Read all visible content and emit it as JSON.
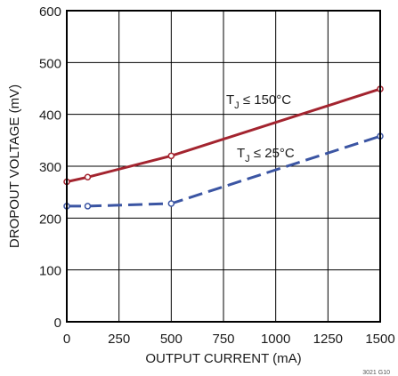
{
  "chart_data": {
    "type": "line",
    "title": "",
    "xlabel": "OUTPUT CURRENT (mA)",
    "ylabel": "DROPOUT VOLTAGE (mV)",
    "xlim": [
      0,
      1500
    ],
    "ylim": [
      0,
      600
    ],
    "xticks": [
      0,
      250,
      500,
      750,
      1000,
      1250,
      1500
    ],
    "yticks": [
      0,
      100,
      200,
      300,
      400,
      500,
      600
    ],
    "grid": true,
    "legend": "inline labels",
    "series": [
      {
        "name": "T_J ≤ 150°C",
        "label_main": "T",
        "label_sub": "J",
        "label_rest": " ≤ 150°C",
        "color": "#a3242f",
        "line_style": "solid",
        "x": [
          0,
          100,
          500,
          1500
        ],
        "y": [
          270,
          279,
          320,
          449
        ]
      },
      {
        "name": "T_J ≤ 25°C",
        "label_main": "T",
        "label_sub": "J",
        "label_rest": " ≤ 25°C",
        "color": "#3b55a3",
        "line_style": "dashed",
        "x": [
          0,
          100,
          500,
          1500
        ],
        "y": [
          223,
          223,
          228,
          358
        ]
      }
    ],
    "figure_id": "3021 G10"
  }
}
